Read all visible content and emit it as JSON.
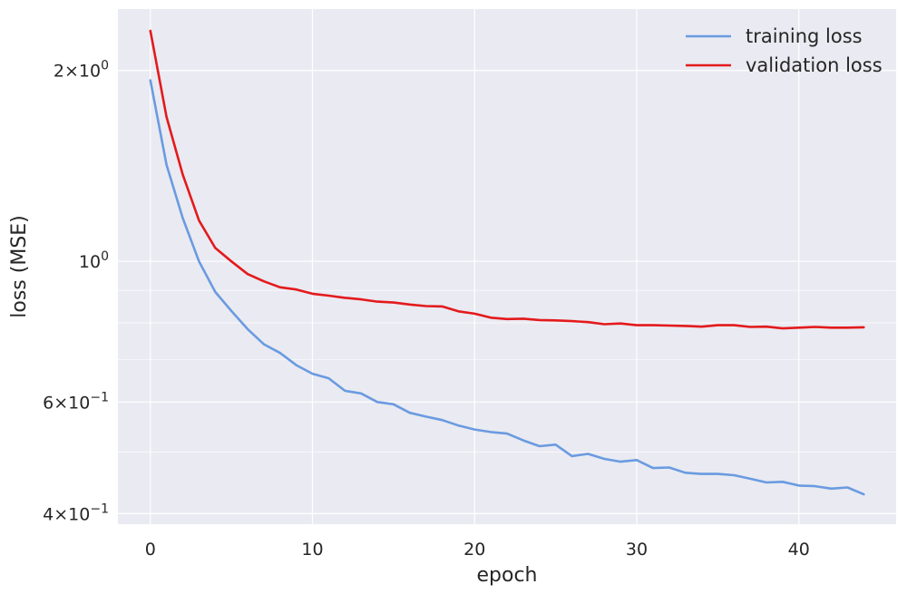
{
  "chart_data": {
    "type": "line",
    "xlabel": "epoch",
    "ylabel": "loss (MSE)",
    "yscale": "log",
    "xlim": [
      -2,
      46
    ],
    "ylim": [
      0.385,
      2.5
    ],
    "grid": true,
    "legend_position": "top-right",
    "x_ticks": [
      0,
      10,
      20,
      30,
      40
    ],
    "y_ticks": [
      {
        "value": 2.0,
        "mantissa": "2",
        "exponent": "0"
      },
      {
        "value": 1.0,
        "mantissa": "",
        "exponent": "0"
      },
      {
        "value": 0.6,
        "mantissa": "6",
        "exponent": "−1"
      },
      {
        "value": 0.4,
        "mantissa": "4",
        "exponent": "−1"
      }
    ],
    "y_minor_ticks": [
      0.5,
      0.7,
      0.8,
      0.9
    ],
    "x": [
      0,
      1,
      2,
      3,
      4,
      5,
      6,
      7,
      8,
      9,
      10,
      11,
      12,
      13,
      14,
      15,
      16,
      17,
      18,
      19,
      20,
      21,
      22,
      23,
      24,
      25,
      26,
      27,
      28,
      29,
      30,
      31,
      32,
      33,
      34,
      35,
      36,
      37,
      38,
      39,
      40,
      41,
      42,
      43,
      44
    ],
    "series": [
      {
        "name": "training loss",
        "color": "#6A9BE0",
        "values": [
          1.93,
          1.42,
          1.17,
          1.0,
          0.895,
          0.835,
          0.782,
          0.74,
          0.717,
          0.686,
          0.665,
          0.654,
          0.625,
          0.619,
          0.6,
          0.595,
          0.577,
          0.569,
          0.562,
          0.551,
          0.543,
          0.538,
          0.535,
          0.522,
          0.511,
          0.514,
          0.493,
          0.497,
          0.488,
          0.483,
          0.486,
          0.472,
          0.473,
          0.464,
          0.462,
          0.462,
          0.46,
          0.454,
          0.448,
          0.449,
          0.443,
          0.442,
          0.438,
          0.44,
          0.429
        ]
      },
      {
        "name": "validation loss",
        "color": "#E31A1C",
        "values": [
          2.31,
          1.69,
          1.37,
          1.16,
          1.05,
          1.0,
          0.955,
          0.93,
          0.91,
          0.903,
          0.889,
          0.883,
          0.876,
          0.871,
          0.864,
          0.861,
          0.855,
          0.85,
          0.849,
          0.834,
          0.827,
          0.815,
          0.811,
          0.812,
          0.808,
          0.807,
          0.805,
          0.802,
          0.796,
          0.798,
          0.793,
          0.793,
          0.792,
          0.791,
          0.789,
          0.793,
          0.793,
          0.788,
          0.789,
          0.784,
          0.786,
          0.788,
          0.786,
          0.786,
          0.787
        ]
      }
    ]
  }
}
